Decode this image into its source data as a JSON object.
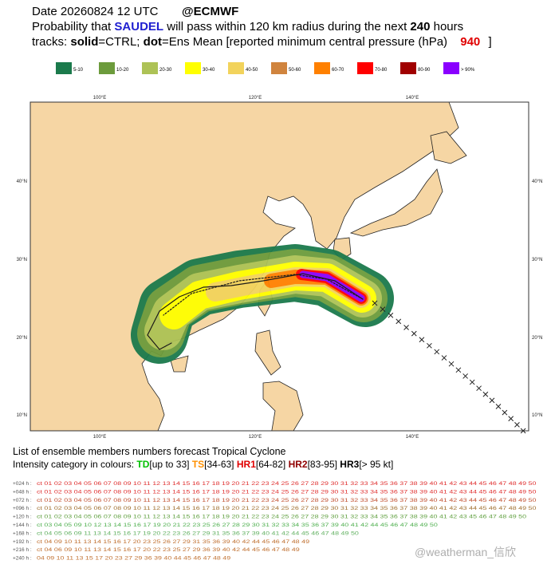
{
  "header": {
    "date": "Date 20260824 12 UTC",
    "source": "@ECMWF",
    "line2": [
      "Probability that",
      "SAUDEL",
      "will pass within 120 km radius during the next",
      "240",
      "hours"
    ],
    "line3": [
      "tracks:",
      "solid",
      "=CTRL;",
      "dot",
      "=Ens Mean [reported minimum central pressure (hPa)",
      "940",
      "]"
    ]
  },
  "legend": [
    {
      "label": "5-10",
      "color": "#1b7a4c"
    },
    {
      "label": "10-20",
      "color": "#6c9b3c"
    },
    {
      "label": "20-30",
      "color": "#adc256"
    },
    {
      "label": "30-40",
      "color": "#ffff00"
    },
    {
      "label": "40-50",
      "color": "#f2d35c"
    },
    {
      "label": "50-60",
      "color": "#d0843e"
    },
    {
      "label": "60-70",
      "color": "#ff8000"
    },
    {
      "label": "70-80",
      "color": "#ff0000"
    },
    {
      "label": "80-90",
      "color": "#a00000"
    },
    {
      "label": "> 90%",
      "color": "#8a00ff"
    }
  ],
  "map": {
    "lon_labels": [
      "100°E",
      "120°E",
      "140°E"
    ],
    "lat_labels": [
      "40°N",
      "30°N",
      "20°N",
      "10°N"
    ]
  },
  "footer": {
    "title": "List of ensemble members numbers forecast Tropical Cyclone",
    "intensity": [
      "Intensity category in colours:",
      "TD",
      "[up to 33]",
      "TS",
      "[34-63]",
      "HR1",
      "[64-82]",
      "HR2",
      "[83-95]",
      "HR3",
      "[> 95 kt]"
    ],
    "rows": [
      {
        "lead": "+024 h :",
        "members": "ct 01 02 03 04 05 06 07 08 09 10 11 12 13 14 15 16 17 18 19 20 21 22 23 24 25 26 27 28 29 30 31 32 33 34 35 36 37 38 39 40 41 42 43 44 45 46 47 48 49 50"
      },
      {
        "lead": "+048 h :",
        "members": "ct 01 02 03 04 05 06 07 08 09 10 11 12 13 14 15 16 17 18 19 20 21 22 23 24 25 26 27 28 29 30 31 32 33 34 35 36 37 38 39 40 41 42 43 44 45 46 47 48 49 50"
      },
      {
        "lead": "+072 h :",
        "members": "ct 01 02 03 04 05 06 07 08 09 10 11 12 13 14 15 16 17 18 19 20 21 22 23 24 25 26 27 28 29 30 31 32 33 34 35 36 37 38 39 40 41 42 43 44 45 46 47 48 49 50"
      },
      {
        "lead": "+096 h :",
        "members": "ct 01 02 03 04 05 06 07 08 09 10 11 12 13 14 15 16 17 18 19 20 21 22 23 24 25 26 27 28 29 30 31 32 33 34 35 36 37 38 39 40 41 42 43 44 45 46 47 48 49 50"
      },
      {
        "lead": "+120 h :",
        "members": "ct 01 02 03 04 05 06 07 08 09 10 11 12 13 14 15 16 17 18 19 20 21 22 23 24 25 26 27 28 29 30 31 32 33 34 35 36 37 38 39 40 41 42 43 45 46 47 48 49 50"
      },
      {
        "lead": "+144 h :",
        "members": "ct 03 04 05 09 10 12 13 14 15 16 17 19 20 21 22 23 25 26 27 28 29 30 31 32 33 34 35 36 37 39 40 41 42 44 45 46 47 48 49 50"
      },
      {
        "lead": "+168 h :",
        "members": "ct 04 05 06 09 11 13 14 15 16 17 19 20 22 23 26 27 29 31 35 36 37 39 40 41 42 44 45 46 47 48 49 50"
      },
      {
        "lead": "+192 h :",
        "members": "ct 04 09 10 11 13 14 15 16 17 20 23 25 26 27 29 31 35 36 39 40 42 44 45 46 47 48 49"
      },
      {
        "lead": "+216 h :",
        "members": "ct 04 06 09 10 11 13 14 15 16 17 20 22 23 25 27 29 36 39 40 42 44 45 46 47 48 49"
      },
      {
        "lead": "+240 h :",
        "members": "04 09 10 11 13 15 17 20 23 27 29 36 39 40 44 45 46 47 48 49"
      }
    ]
  },
  "watermark": "@weatherman_信欣"
}
